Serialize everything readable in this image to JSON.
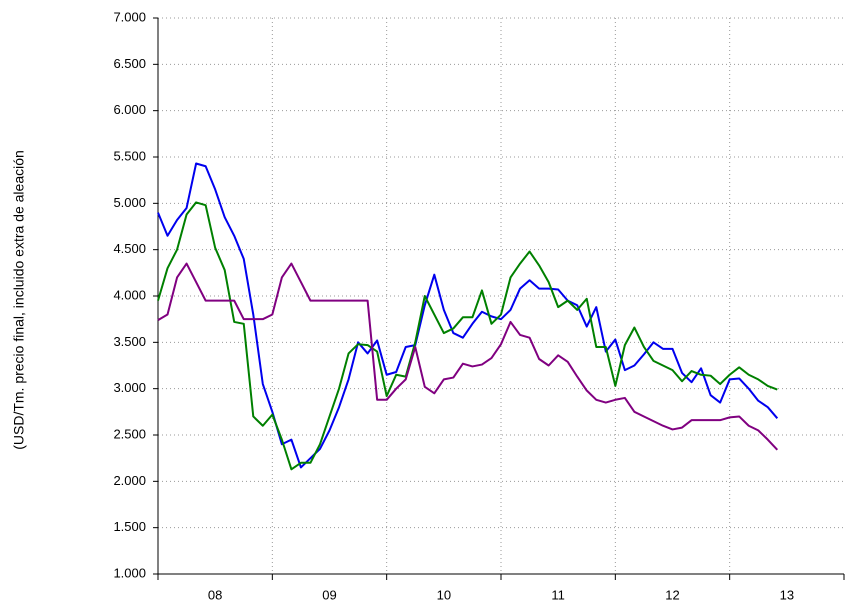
{
  "chart_data": {
    "type": "line",
    "y_label": "(USD/Tm. precio final, incluido extra de aleación",
    "categories": [
      null,
      null,
      null,
      null,
      null,
      null,
      "08",
      null,
      null,
      null,
      null,
      null,
      null,
      null,
      null,
      null,
      null,
      null,
      "09",
      null,
      null,
      null,
      null,
      null,
      null,
      null,
      null,
      null,
      null,
      null,
      "10",
      null,
      null,
      null,
      null,
      null,
      null,
      null,
      null,
      null,
      null,
      null,
      "11",
      null,
      null,
      null,
      null,
      null,
      null,
      null,
      null,
      null,
      null,
      null,
      "12",
      null,
      null,
      null,
      null,
      null,
      null,
      null,
      null,
      null,
      null,
      null,
      "13",
      null,
      null,
      null,
      null,
      null
    ],
    "series": [
      {
        "color": "#0000ee",
        "values": [
          4900,
          4650,
          4820,
          4950,
          5430,
          5400,
          5150,
          4850,
          4650,
          4400,
          3800,
          3050,
          2750,
          2400,
          2450,
          2150,
          2250,
          2350,
          2550,
          2800,
          3100,
          3500,
          3380,
          3520,
          3150,
          3180,
          3450,
          3470,
          3900,
          4230,
          3850,
          3600,
          3550,
          3700,
          3830,
          3780,
          3750,
          3850,
          4080,
          4170,
          4080,
          4080,
          4070,
          3950,
          3900,
          3670,
          3880,
          3400,
          3530,
          3200,
          3250,
          3370,
          3500,
          3430,
          3430,
          3170,
          3070,
          3220,
          2930,
          2850,
          3100,
          3110,
          3000,
          2870,
          2800,
          2680,
          null,
          null,
          null,
          null,
          null,
          null
        ]
      },
      {
        "color": "#008000",
        "values": [
          3950,
          4300,
          4500,
          4880,
          5010,
          4980,
          4520,
          4280,
          3720,
          3700,
          2700,
          2600,
          2720,
          2450,
          2130,
          2200,
          2200,
          2400,
          2700,
          3000,
          3380,
          3480,
          3470,
          3400,
          2920,
          3150,
          3130,
          3500,
          4000,
          3800,
          3600,
          3650,
          3770,
          3770,
          4060,
          3700,
          3800,
          4200,
          4350,
          4480,
          4330,
          4150,
          3880,
          3950,
          3850,
          3970,
          3450,
          3450,
          3030,
          3470,
          3660,
          3450,
          3300,
          3250,
          3200,
          3080,
          3190,
          3150,
          3140,
          3050,
          3150,
          3230,
          3150,
          3100,
          3030,
          2990,
          null,
          null,
          null,
          null,
          null,
          null
        ]
      },
      {
        "color": "#800080",
        "values": [
          3740,
          3800,
          4200,
          4350,
          4150,
          3950,
          3950,
          3950,
          3950,
          3750,
          3750,
          3750,
          3800,
          4200,
          4350,
          4150,
          3950,
          3950,
          3950,
          3950,
          3950,
          3950,
          3950,
          2880,
          2880,
          3000,
          3100,
          3450,
          3020,
          2950,
          3100,
          3120,
          3270,
          3240,
          3260,
          3330,
          3480,
          3720,
          3580,
          3550,
          3320,
          3250,
          3360,
          3290,
          3130,
          2980,
          2880,
          2850,
          2880,
          2900,
          2750,
          2700,
          2650,
          2600,
          2560,
          2580,
          2660,
          2660,
          2660,
          2660,
          2690,
          2700,
          2600,
          2550,
          2450,
          2340,
          null,
          null,
          null,
          null,
          null,
          null
        ]
      }
    ],
    "ylim": [
      1000,
      7000
    ],
    "yticks": [
      {
        "value": 1000,
        "label": "1.000"
      },
      {
        "value": 1500,
        "label": "1.500"
      },
      {
        "value": 2000,
        "label": "2.000"
      },
      {
        "value": 2500,
        "label": "2.500"
      },
      {
        "value": 3000,
        "label": "3.000"
      },
      {
        "value": 3500,
        "label": "3.500"
      },
      {
        "value": 4000,
        "label": "4.000"
      },
      {
        "value": 4500,
        "label": "4.500"
      },
      {
        "value": 5000,
        "label": "5.000"
      },
      {
        "value": 5500,
        "label": "5.500"
      },
      {
        "value": 6000,
        "label": "6.000"
      },
      {
        "value": 6500,
        "label": "6.500"
      },
      {
        "value": 7000,
        "label": "7.000"
      }
    ],
    "grid": true
  }
}
